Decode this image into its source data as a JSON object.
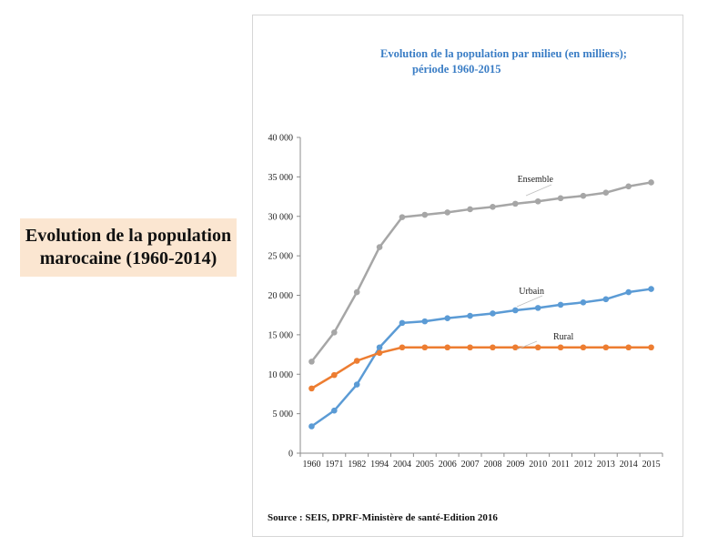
{
  "side_title": {
    "line1": "Evolution de la population",
    "line2": "marocaine (1960-2014)"
  },
  "chart_title": {
    "line1": "Evolution de la population par milieu (en milliers);",
    "line2": "période 1960-2015"
  },
  "source": "Source : SEIS, DPRF-Ministère de santé-Edition 2016",
  "colors": {
    "Ensemble": "#a6a6a6",
    "Urbain": "#5b9bd5",
    "Rural": "#ed7d31"
  },
  "chart_data": {
    "type": "line",
    "title": "Evolution de la population par milieu (en milliers); période 1960-2015",
    "xlabel": "",
    "ylabel": "",
    "ylim": [
      0,
      40000
    ],
    "yticks": [
      "0",
      "5 000",
      "10 000",
      "15 000",
      "20 000",
      "25 000",
      "30 000",
      "35 000",
      "40 000"
    ],
    "categories": [
      "1960",
      "1971",
      "1982",
      "1994",
      "2004",
      "2005",
      "2006",
      "2007",
      "2008",
      "2009",
      "2010",
      "2011",
      "2012",
      "2013",
      "2014",
      "2015"
    ],
    "series": [
      {
        "name": "Ensemble",
        "values": [
          11600,
          15300,
          20400,
          26100,
          29900,
          30200,
          30500,
          30900,
          31200,
          31600,
          31900,
          32300,
          32600,
          33000,
          33800,
          34300
        ]
      },
      {
        "name": "Urbain",
        "values": [
          3400,
          5400,
          8700,
          13400,
          16500,
          16700,
          17100,
          17400,
          17700,
          18100,
          18400,
          18800,
          19100,
          19500,
          20400,
          20800
        ]
      },
      {
        "name": "Rural",
        "values": [
          8200,
          9900,
          11700,
          12700,
          13400,
          13400,
          13400,
          13400,
          13400,
          13400,
          13400,
          13400,
          13400,
          13400,
          13400,
          13400
        ]
      }
    ],
    "grid": false
  }
}
